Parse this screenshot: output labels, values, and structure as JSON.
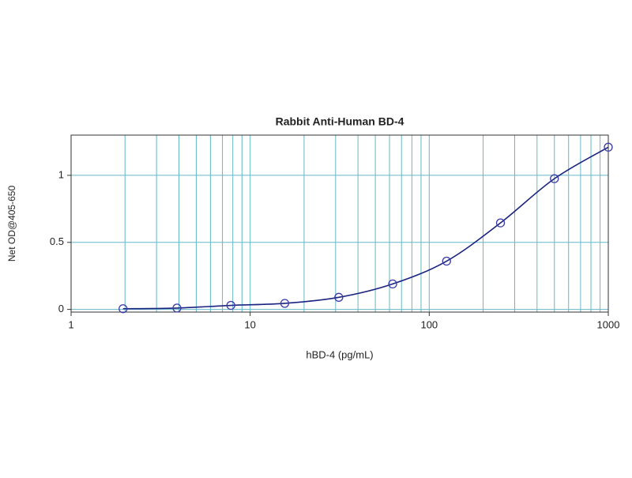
{
  "chart_data": {
    "type": "scatter",
    "title": "Rabbit Anti-Human BD-4",
    "x_label": "hBD-4 (pg/mL)",
    "y_label": "Net OD@405-650",
    "x": [
      1.95,
      3.9,
      7.8,
      15.6,
      31.25,
      62.5,
      125,
      250,
      500,
      1000
    ],
    "series": [
      {
        "marker_color": "#3a3aa8",
        "line_color": "#1a2380",
        "values": [
          0.005,
          0.01,
          0.03,
          0.045,
          0.09,
          0.19,
          0.36,
          0.645,
          0.975,
          1.21
        ]
      }
    ],
    "connect": true,
    "xscale": "log",
    "xlim": [
      1,
      1000
    ],
    "xticks": [
      1,
      10,
      100,
      1000
    ],
    "ylim": [
      -0.02,
      1.3
    ],
    "yticks": [
      0,
      0.5,
      1
    ],
    "grid": true,
    "minor_grid": true,
    "grid_color": "#63b8c8"
  }
}
